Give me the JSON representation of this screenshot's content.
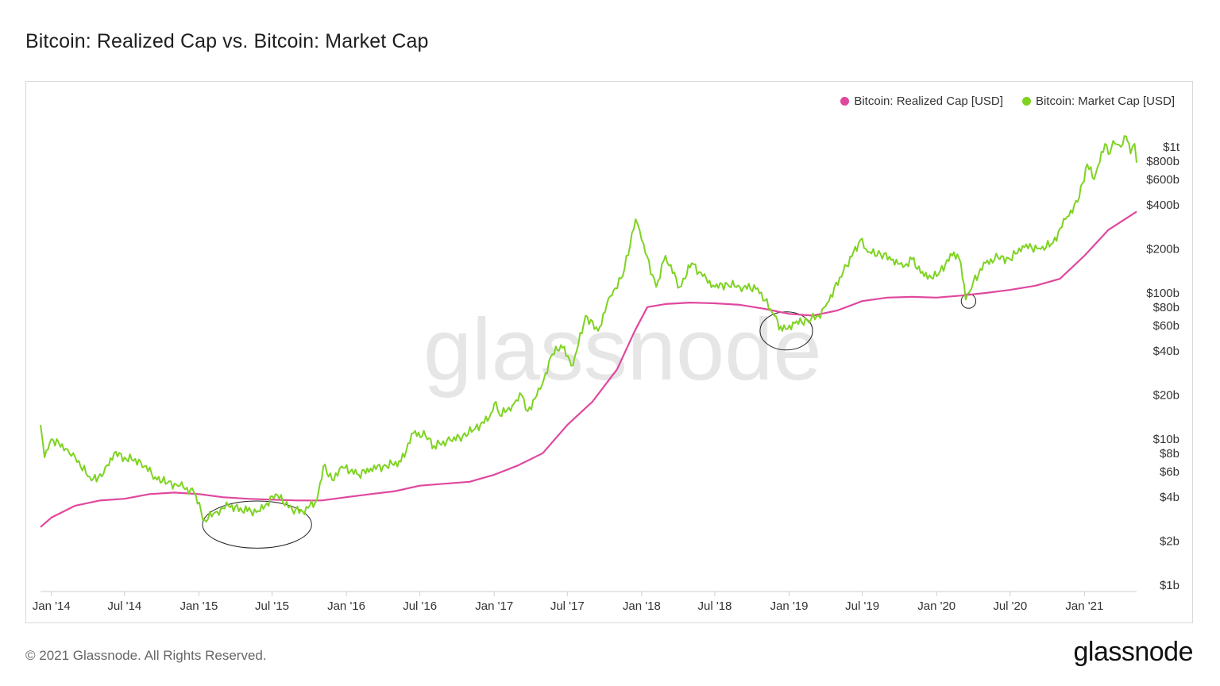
{
  "title": "Bitcoin: Realized Cap vs. Bitcoin: Market Cap",
  "footer": {
    "copyright": "© 2021 Glassnode. All Rights Reserved.",
    "logo_text": "glassnode"
  },
  "watermark": "glassnode",
  "colors": {
    "realized": "#e0479e",
    "market": "#7ed321",
    "annotation": "#222222"
  },
  "chart_data": {
    "type": "line",
    "yscale": "log",
    "ylim": [
      1000000000,
      1000000000000
    ],
    "xlim": [
      "2013-12-05",
      "2021-05-10"
    ],
    "y_ticks": [
      {
        "label": "$1t",
        "value": 1000000000000
      },
      {
        "label": "$800b",
        "value": 800000000000
      },
      {
        "label": "$600b",
        "value": 600000000000
      },
      {
        "label": "$400b",
        "value": 400000000000
      },
      {
        "label": "$200b",
        "value": 200000000000
      },
      {
        "label": "$100b",
        "value": 100000000000
      },
      {
        "label": "$80b",
        "value": 80000000000
      },
      {
        "label": "$60b",
        "value": 60000000000
      },
      {
        "label": "$40b",
        "value": 40000000000
      },
      {
        "label": "$20b",
        "value": 20000000000
      },
      {
        "label": "$10b",
        "value": 10000000000
      },
      {
        "label": "$8b",
        "value": 8000000000
      },
      {
        "label": "$6b",
        "value": 6000000000
      },
      {
        "label": "$4b",
        "value": 4000000000
      },
      {
        "label": "$2b",
        "value": 2000000000
      },
      {
        "label": "$1b",
        "value": 1000000000
      }
    ],
    "x_ticks": [
      {
        "label": "Jan '14",
        "date": "2014-01-01"
      },
      {
        "label": "Jul '14",
        "date": "2014-07-01"
      },
      {
        "label": "Jan '15",
        "date": "2015-01-01"
      },
      {
        "label": "Jul '15",
        "date": "2015-07-01"
      },
      {
        "label": "Jan '16",
        "date": "2016-01-01"
      },
      {
        "label": "Jul '16",
        "date": "2016-07-01"
      },
      {
        "label": "Jan '17",
        "date": "2017-01-01"
      },
      {
        "label": "Jul '17",
        "date": "2017-07-01"
      },
      {
        "label": "Jan '18",
        "date": "2018-01-01"
      },
      {
        "label": "Jul '18",
        "date": "2018-07-01"
      },
      {
        "label": "Jan '19",
        "date": "2019-01-01"
      },
      {
        "label": "Jul '19",
        "date": "2019-07-01"
      },
      {
        "label": "Jan '20",
        "date": "2020-01-01"
      },
      {
        "label": "Jul '20",
        "date": "2020-07-01"
      },
      {
        "label": "Jan '21",
        "date": "2021-01-01"
      }
    ],
    "legend_position": "top-right",
    "series": [
      {
        "name": "Bitcoin: Realized Cap [USD]",
        "color": "#e0479e",
        "points": [
          [
            "2013-12-05",
            2.5
          ],
          [
            "2014-01-01",
            2.9
          ],
          [
            "2014-03-01",
            3.5
          ],
          [
            "2014-05-01",
            3.8
          ],
          [
            "2014-07-01",
            3.9
          ],
          [
            "2014-09-01",
            4.2
          ],
          [
            "2014-11-01",
            4.3
          ],
          [
            "2015-01-01",
            4.2
          ],
          [
            "2015-03-01",
            4.0
          ],
          [
            "2015-05-01",
            3.9
          ],
          [
            "2015-07-01",
            3.85
          ],
          [
            "2015-09-01",
            3.8
          ],
          [
            "2015-11-01",
            3.8
          ],
          [
            "2016-01-01",
            4.0
          ],
          [
            "2016-03-01",
            4.2
          ],
          [
            "2016-05-01",
            4.4
          ],
          [
            "2016-07-01",
            4.8
          ],
          [
            "2016-09-01",
            4.95
          ],
          [
            "2016-11-01",
            5.1
          ],
          [
            "2017-01-01",
            5.7
          ],
          [
            "2017-03-01",
            6.6
          ],
          [
            "2017-05-01",
            8.0
          ],
          [
            "2017-07-01",
            12.5
          ],
          [
            "2017-09-01",
            18.0
          ],
          [
            "2017-11-01",
            30.0
          ],
          [
            "2017-12-15",
            55.0
          ],
          [
            "2018-01-15",
            80.0
          ],
          [
            "2018-03-01",
            84.0
          ],
          [
            "2018-05-01",
            86.0
          ],
          [
            "2018-07-01",
            85.0
          ],
          [
            "2018-09-01",
            83.0
          ],
          [
            "2018-11-01",
            78.0
          ],
          [
            "2019-01-01",
            72.0
          ],
          [
            "2019-03-01",
            70.0
          ],
          [
            "2019-05-01",
            76.0
          ],
          [
            "2019-07-01",
            88.0
          ],
          [
            "2019-09-01",
            93.0
          ],
          [
            "2019-11-01",
            94.0
          ],
          [
            "2020-01-01",
            93.0
          ],
          [
            "2020-03-01",
            96.0
          ],
          [
            "2020-05-01",
            100.0
          ],
          [
            "2020-07-01",
            105.0
          ],
          [
            "2020-09-01",
            112.0
          ],
          [
            "2020-11-01",
            125.0
          ],
          [
            "2021-01-01",
            180.0
          ],
          [
            "2021-03-01",
            270.0
          ],
          [
            "2021-05-10",
            360.0
          ]
        ]
      },
      {
        "name": "Bitcoin: Market Cap [USD]",
        "color": "#7ed321",
        "points": [
          [
            "2013-12-05",
            12.5
          ],
          [
            "2013-12-15",
            7.5
          ],
          [
            "2014-01-01",
            10.0
          ],
          [
            "2014-02-10",
            8.5
          ],
          [
            "2014-03-01",
            7.5
          ],
          [
            "2014-04-10",
            5.2
          ],
          [
            "2014-05-10",
            5.8
          ],
          [
            "2014-06-05",
            8.0
          ],
          [
            "2014-07-01",
            7.5
          ],
          [
            "2014-08-10",
            7.0
          ],
          [
            "2014-09-15",
            5.5
          ],
          [
            "2014-10-15",
            5.0
          ],
          [
            "2014-11-15",
            4.8
          ],
          [
            "2014-12-20",
            4.3
          ],
          [
            "2015-01-15",
            2.8
          ],
          [
            "2015-02-15",
            3.2
          ],
          [
            "2015-03-15",
            3.5
          ],
          [
            "2015-05-01",
            3.2
          ],
          [
            "2015-06-01",
            3.2
          ],
          [
            "2015-07-10",
            4.2
          ],
          [
            "2015-08-20",
            3.3
          ],
          [
            "2015-09-15",
            3.2
          ],
          [
            "2015-10-20",
            3.8
          ],
          [
            "2015-11-05",
            6.5
          ],
          [
            "2015-12-01",
            5.2
          ],
          [
            "2015-12-20",
            6.5
          ],
          [
            "2016-02-01",
            5.7
          ],
          [
            "2016-03-01",
            6.3
          ],
          [
            "2016-04-01",
            6.5
          ],
          [
            "2016-05-15",
            7.0
          ],
          [
            "2016-06-15",
            11.0
          ],
          [
            "2016-07-15",
            10.5
          ],
          [
            "2016-08-05",
            9.0
          ],
          [
            "2016-09-15",
            9.8
          ],
          [
            "2016-10-15",
            10.5
          ],
          [
            "2016-11-15",
            11.8
          ],
          [
            "2016-12-20",
            14.0
          ],
          [
            "2017-01-05",
            18.0
          ],
          [
            "2017-01-15",
            14.5
          ],
          [
            "2017-02-15",
            17.0
          ],
          [
            "2017-03-10",
            20.0
          ],
          [
            "2017-03-25",
            15.5
          ],
          [
            "2017-04-25",
            22.0
          ],
          [
            "2017-05-25",
            38.0
          ],
          [
            "2017-06-15",
            44.0
          ],
          [
            "2017-07-15",
            32.0
          ],
          [
            "2017-08-15",
            70.0
          ],
          [
            "2017-09-15",
            55.0
          ],
          [
            "2017-10-15",
            95.0
          ],
          [
            "2017-11-15",
            130.0
          ],
          [
            "2017-12-17",
            320.0
          ],
          [
            "2018-01-01",
            230.0
          ],
          [
            "2018-02-06",
            110.0
          ],
          [
            "2018-03-01",
            180.0
          ],
          [
            "2018-04-05",
            110.0
          ],
          [
            "2018-05-05",
            160.0
          ],
          [
            "2018-06-01",
            130.0
          ],
          [
            "2018-07-01",
            110.0
          ],
          [
            "2018-08-01",
            115.0
          ],
          [
            "2018-09-01",
            110.0
          ],
          [
            "2018-10-15",
            108.0
          ],
          [
            "2018-11-25",
            70.0
          ],
          [
            "2018-12-15",
            55.0
          ],
          [
            "2019-01-15",
            62.0
          ],
          [
            "2019-02-15",
            65.0
          ],
          [
            "2019-03-15",
            70.0
          ],
          [
            "2019-04-05",
            85.0
          ],
          [
            "2019-05-15",
            140.0
          ],
          [
            "2019-06-26",
            230.0
          ],
          [
            "2019-07-15",
            190.0
          ],
          [
            "2019-08-15",
            185.0
          ],
          [
            "2019-09-15",
            170.0
          ],
          [
            "2019-10-10",
            150.0
          ],
          [
            "2019-11-01",
            170.0
          ],
          [
            "2019-12-01",
            130.0
          ],
          [
            "2020-01-01",
            130.0
          ],
          [
            "2020-02-13",
            190.0
          ],
          [
            "2020-03-01",
            160.0
          ],
          [
            "2020-03-13",
            90.0
          ],
          [
            "2020-04-01",
            120.0
          ],
          [
            "2020-05-01",
            160.0
          ],
          [
            "2020-06-01",
            175.0
          ],
          [
            "2020-07-01",
            170.0
          ],
          [
            "2020-08-01",
            210.0
          ],
          [
            "2020-09-15",
            200.0
          ],
          [
            "2020-10-15",
            220.0
          ],
          [
            "2020-11-15",
            320.0
          ],
          [
            "2020-12-15",
            420.0
          ],
          [
            "2021-01-08",
            760.0
          ],
          [
            "2021-01-25",
            600.0
          ],
          [
            "2021-02-21",
            1050.0
          ],
          [
            "2021-03-05",
            900.0
          ],
          [
            "2021-03-13",
            1100.0
          ],
          [
            "2021-04-01",
            1000.0
          ],
          [
            "2021-04-14",
            1180.0
          ],
          [
            "2021-04-25",
            900.0
          ],
          [
            "2021-05-05",
            1050.0
          ],
          [
            "2021-05-10",
            780.0
          ]
        ]
      }
    ],
    "value_unit_note_scale": 1000000000,
    "annotations": [
      {
        "shape": "ellipse",
        "date_center": "2015-05-25",
        "value_center": 2.6,
        "date_radius_days": 135,
        "value_factor": 1.45
      },
      {
        "shape": "ellipse",
        "date_center": "2018-12-25",
        "value_center": 55.0,
        "date_radius_days": 65,
        "value_factor": 1.35
      },
      {
        "shape": "ellipse",
        "date_center": "2020-03-20",
        "value_center": 88.0,
        "date_radius_days": 18,
        "value_factor": 1.12
      }
    ]
  }
}
